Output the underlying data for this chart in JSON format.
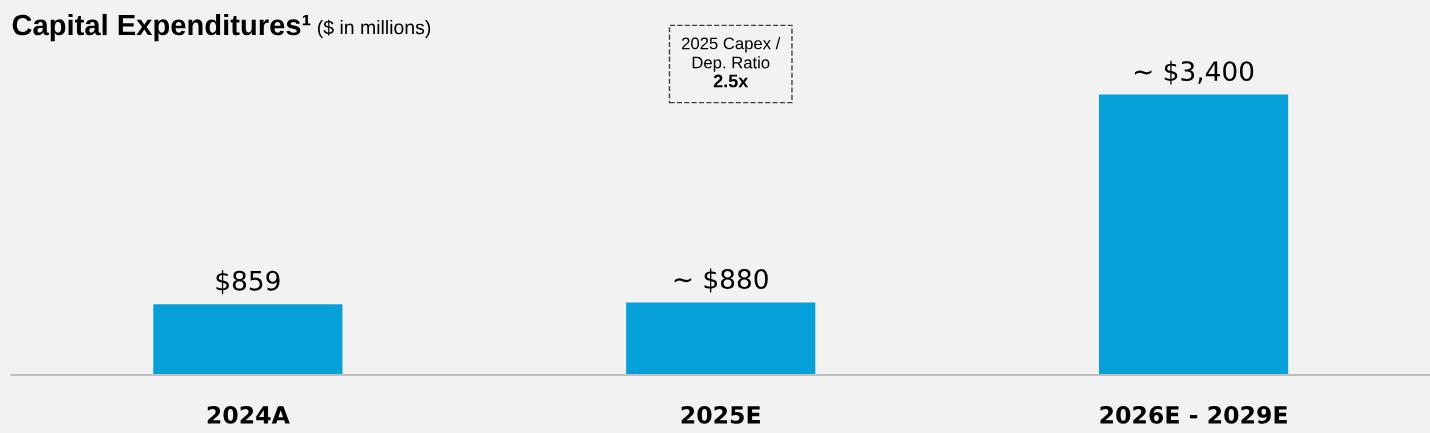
{
  "chart_data": {
    "type": "bar",
    "title": "Capital Expenditures¹",
    "subtitle": "($ in millions)",
    "categories": [
      "2024A",
      "2025E",
      "2026E - 2029E"
    ],
    "values": [
      859,
      880,
      3400
    ],
    "value_labels": [
      "$859",
      "~ $880",
      "~ $3,400"
    ],
    "color": "#059fd9",
    "tick_labels": "x",
    "grid": false,
    "legend": false,
    "annotations": [
      "2025 Capex /\nDep. Ratio\n2.5x"
    ]
  }
}
